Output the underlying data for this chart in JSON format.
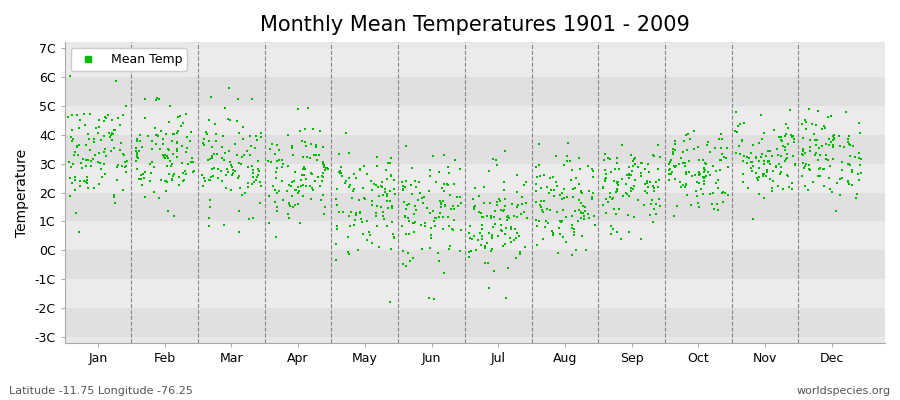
{
  "title": "Monthly Mean Temperatures 1901 - 2009",
  "ylabel": "Temperature",
  "subtitle": "Latitude -11.75 Longitude -76.25",
  "watermark": "worldspecies.org",
  "legend_label": "Mean Temp",
  "marker_color": "#00bb00",
  "background_color": "#ffffff",
  "plot_bg_color": "#e8e8e8",
  "band_color_a": "#e0e0e0",
  "band_color_b": "#ebebeb",
  "ylim": [
    -3.2,
    7.2
  ],
  "ytick_vals": [
    -3,
    -2,
    -1,
    0,
    1,
    2,
    3,
    4,
    5,
    6,
    7
  ],
  "ytick_labels": [
    "-3C",
    "-2C",
    "-1C",
    "0C",
    "1C",
    "2C",
    "3C",
    "4C",
    "5C",
    "6C",
    "7C"
  ],
  "months": [
    "Jan",
    "Feb",
    "Mar",
    "Apr",
    "May",
    "Jun",
    "Jul",
    "Aug",
    "Sep",
    "Oct",
    "Nov",
    "Dec"
  ],
  "month_means": [
    3.3,
    3.2,
    3.1,
    2.7,
    1.7,
    1.2,
    1.1,
    1.5,
    2.2,
    2.8,
    3.2,
    3.3
  ],
  "month_stds": [
    1.0,
    0.95,
    0.9,
    0.85,
    1.0,
    1.0,
    0.95,
    0.85,
    0.8,
    0.75,
    0.75,
    0.75
  ],
  "n_years": 109,
  "seed": 42,
  "dashed_line_color": "#888888",
  "title_fontsize": 15,
  "axis_fontsize": 10,
  "tick_fontsize": 9,
  "marker_size": 4
}
